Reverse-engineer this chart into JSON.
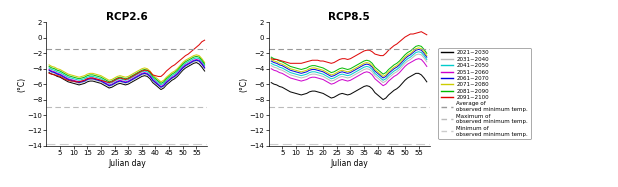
{
  "title_left": "RCP2.6",
  "title_right": "RCP8.5",
  "xlabel": "Julian day",
  "ylabel": "(°C)",
  "xlim": [
    0,
    59
  ],
  "ylim": [
    -14,
    2
  ],
  "yticks": [
    2,
    0,
    -2,
    -4,
    -6,
    -8,
    -10,
    -12,
    -14
  ],
  "xticks": [
    5,
    10,
    15,
    20,
    25,
    30,
    35,
    40,
    45,
    50,
    55
  ],
  "hlines": {
    "avg": -1.5,
    "max": -9.0,
    "min": -13.8
  },
  "series_colors": [
    "#000000",
    "#bbbbbb",
    "#00cccc",
    "#cc00cc",
    "#0000dd",
    "#cccc00",
    "#00bb00",
    "#dd0000"
  ],
  "series_labels": [
    "2021~2030",
    "2031~2040",
    "2041~2050",
    "2051~2060",
    "2061~2070",
    "2071~2080",
    "2081~2090",
    "2091~2100"
  ],
  "legend_hline_labels": [
    "Average of\nobserved minimum temp.",
    "Maximum of\nobserved minimum temp.",
    "Minimum of\nobserved minimum temp."
  ],
  "legend_hline_colors": [
    "#999999",
    "#bbbbbb",
    "#cccccc"
  ],
  "rcp26": {
    "s0": [
      -4.5,
      -4.7,
      -4.8,
      -5.0,
      -5.1,
      -5.3,
      -5.5,
      -5.7,
      -5.8,
      -5.9,
      -6.0,
      -6.1,
      -6.0,
      -5.9,
      -5.7,
      -5.6,
      -5.6,
      -5.7,
      -5.8,
      -5.9,
      -6.1,
      -6.3,
      -6.5,
      -6.4,
      -6.2,
      -6.0,
      -5.9,
      -6.0,
      -6.1,
      -6.0,
      -5.8,
      -5.6,
      -5.4,
      -5.2,
      -5.0,
      -4.9,
      -5.0,
      -5.3,
      -5.8,
      -6.1,
      -6.4,
      -6.7,
      -6.5,
      -6.1,
      -5.8,
      -5.5,
      -5.3,
      -5.0,
      -4.6,
      -4.2,
      -3.9,
      -3.7,
      -3.5,
      -3.3,
      -3.2,
      -3.4,
      -3.8,
      -4.3
    ],
    "s1": [
      -4.3,
      -4.5,
      -4.6,
      -4.8,
      -4.9,
      -5.1,
      -5.3,
      -5.5,
      -5.6,
      -5.7,
      -5.8,
      -5.9,
      -5.8,
      -5.7,
      -5.5,
      -5.4,
      -5.4,
      -5.5,
      -5.6,
      -5.7,
      -5.9,
      -6.1,
      -6.3,
      -6.2,
      -6.0,
      -5.8,
      -5.7,
      -5.8,
      -5.9,
      -5.8,
      -5.6,
      -5.4,
      -5.2,
      -5.0,
      -4.8,
      -4.7,
      -4.8,
      -5.1,
      -5.6,
      -5.9,
      -6.2,
      -6.5,
      -6.3,
      -5.9,
      -5.6,
      -5.3,
      -5.1,
      -4.8,
      -4.4,
      -4.0,
      -3.7,
      -3.5,
      -3.3,
      -3.1,
      -3.0,
      -3.1,
      -3.5,
      -4.0
    ],
    "s2": [
      -3.9,
      -4.1,
      -4.2,
      -4.4,
      -4.5,
      -4.7,
      -4.9,
      -5.1,
      -5.2,
      -5.3,
      -5.4,
      -5.5,
      -5.4,
      -5.3,
      -5.1,
      -5.0,
      -5.0,
      -5.1,
      -5.2,
      -5.3,
      -5.5,
      -5.7,
      -5.9,
      -5.8,
      -5.6,
      -5.4,
      -5.3,
      -5.4,
      -5.5,
      -5.4,
      -5.2,
      -5.0,
      -4.8,
      -4.6,
      -4.4,
      -4.3,
      -4.4,
      -4.7,
      -5.2,
      -5.5,
      -5.8,
      -6.1,
      -5.9,
      -5.5,
      -5.2,
      -4.9,
      -4.7,
      -4.4,
      -4.0,
      -3.6,
      -3.3,
      -3.1,
      -2.9,
      -2.7,
      -2.6,
      -2.7,
      -3.1,
      -3.6
    ],
    "s3": [
      -4.1,
      -4.3,
      -4.4,
      -4.6,
      -4.7,
      -4.9,
      -5.1,
      -5.3,
      -5.4,
      -5.5,
      -5.6,
      -5.7,
      -5.6,
      -5.5,
      -5.3,
      -5.2,
      -5.2,
      -5.3,
      -5.4,
      -5.5,
      -5.7,
      -5.9,
      -6.1,
      -6.0,
      -5.8,
      -5.6,
      -5.5,
      -5.6,
      -5.7,
      -5.6,
      -5.4,
      -5.2,
      -5.0,
      -4.8,
      -4.6,
      -4.5,
      -4.6,
      -4.9,
      -5.4,
      -5.7,
      -6.0,
      -6.3,
      -6.1,
      -5.7,
      -5.4,
      -5.1,
      -4.9,
      -4.6,
      -4.2,
      -3.8,
      -3.5,
      -3.3,
      -3.1,
      -2.9,
      -2.8,
      -2.9,
      -3.3,
      -3.8
    ],
    "s4": [
      -4.2,
      -4.4,
      -4.5,
      -4.7,
      -4.8,
      -5.0,
      -5.2,
      -5.4,
      -5.5,
      -5.6,
      -5.7,
      -5.8,
      -5.7,
      -5.6,
      -5.4,
      -5.3,
      -5.3,
      -5.4,
      -5.5,
      -5.6,
      -5.8,
      -6.0,
      -6.2,
      -6.1,
      -5.9,
      -5.7,
      -5.6,
      -5.7,
      -5.8,
      -5.7,
      -5.5,
      -5.3,
      -5.1,
      -4.9,
      -4.7,
      -4.6,
      -4.7,
      -5.0,
      -5.5,
      -5.8,
      -6.1,
      -6.4,
      -6.2,
      -5.8,
      -5.5,
      -5.2,
      -5.0,
      -4.7,
      -4.3,
      -3.9,
      -3.6,
      -3.4,
      -3.2,
      -3.0,
      -2.9,
      -3.0,
      -3.4,
      -3.9
    ],
    "s5": [
      -3.5,
      -3.7,
      -3.8,
      -4.0,
      -4.1,
      -4.3,
      -4.5,
      -4.7,
      -4.8,
      -4.9,
      -5.0,
      -5.1,
      -5.0,
      -4.9,
      -4.7,
      -4.6,
      -4.6,
      -4.7,
      -4.8,
      -4.9,
      -5.1,
      -5.3,
      -5.5,
      -5.4,
      -5.2,
      -5.0,
      -4.9,
      -5.0,
      -5.1,
      -5.0,
      -4.8,
      -4.6,
      -4.4,
      -4.2,
      -4.0,
      -3.9,
      -4.0,
      -4.3,
      -4.8,
      -5.1,
      -5.4,
      -5.7,
      -5.5,
      -5.1,
      -4.8,
      -4.5,
      -4.3,
      -4.0,
      -3.6,
      -3.2,
      -2.9,
      -2.7,
      -2.5,
      -2.3,
      -2.2,
      -2.3,
      -2.7,
      -3.2
    ],
    "s6": [
      -3.7,
      -3.9,
      -4.0,
      -4.2,
      -4.3,
      -4.5,
      -4.7,
      -4.9,
      -5.0,
      -5.1,
      -5.2,
      -5.3,
      -5.2,
      -5.1,
      -4.9,
      -4.8,
      -4.8,
      -4.9,
      -5.0,
      -5.1,
      -5.3,
      -5.5,
      -5.7,
      -5.6,
      -5.4,
      -5.2,
      -5.1,
      -5.2,
      -5.3,
      -5.2,
      -5.0,
      -4.8,
      -4.6,
      -4.4,
      -4.2,
      -4.1,
      -4.2,
      -4.5,
      -5.0,
      -5.3,
      -5.6,
      -5.9,
      -5.7,
      -5.3,
      -5.0,
      -4.7,
      -4.5,
      -4.2,
      -3.8,
      -3.4,
      -3.1,
      -2.9,
      -2.7,
      -2.5,
      -2.4,
      -2.5,
      -2.9,
      -3.4
    ],
    "s7": [
      -4.6,
      -4.7,
      -4.8,
      -4.9,
      -5.0,
      -5.2,
      -5.4,
      -5.5,
      -5.6,
      -5.6,
      -5.7,
      -5.7,
      -5.6,
      -5.5,
      -5.3,
      -5.2,
      -5.2,
      -5.3,
      -5.4,
      -5.5,
      -5.6,
      -5.7,
      -5.8,
      -5.7,
      -5.5,
      -5.3,
      -5.2,
      -5.3,
      -5.4,
      -5.3,
      -5.1,
      -4.9,
      -4.7,
      -4.5,
      -4.3,
      -4.2,
      -4.2,
      -4.4,
      -4.8,
      -4.9,
      -5.0,
      -5.0,
      -4.7,
      -4.3,
      -4.0,
      -3.7,
      -3.5,
      -3.2,
      -2.9,
      -2.6,
      -2.3,
      -2.1,
      -1.8,
      -1.5,
      -1.2,
      -0.9,
      -0.5,
      -0.3
    ]
  },
  "rcp85": {
    "s0": [
      -5.8,
      -6.0,
      -6.1,
      -6.3,
      -6.4,
      -6.6,
      -6.8,
      -7.0,
      -7.1,
      -7.2,
      -7.3,
      -7.4,
      -7.3,
      -7.2,
      -7.0,
      -6.9,
      -6.9,
      -7.0,
      -7.1,
      -7.2,
      -7.4,
      -7.6,
      -7.8,
      -7.7,
      -7.5,
      -7.3,
      -7.2,
      -7.3,
      -7.4,
      -7.3,
      -7.1,
      -6.9,
      -6.7,
      -6.5,
      -6.3,
      -6.2,
      -6.3,
      -6.6,
      -7.1,
      -7.4,
      -7.7,
      -8.0,
      -7.8,
      -7.4,
      -7.1,
      -6.8,
      -6.6,
      -6.3,
      -5.9,
      -5.5,
      -5.2,
      -5.0,
      -4.8,
      -4.6,
      -4.6,
      -4.8,
      -5.2,
      -5.7
    ],
    "s1": [
      -3.6,
      -3.8,
      -3.9,
      -4.1,
      -4.2,
      -4.4,
      -4.6,
      -4.8,
      -4.9,
      -5.0,
      -5.1,
      -5.2,
      -5.1,
      -5.0,
      -4.8,
      -4.7,
      -4.7,
      -4.8,
      -4.9,
      -5.0,
      -5.2,
      -5.4,
      -5.6,
      -5.5,
      -5.3,
      -5.1,
      -5.0,
      -5.1,
      -5.2,
      -5.1,
      -4.9,
      -4.7,
      -4.5,
      -4.3,
      -4.1,
      -4.0,
      -4.1,
      -4.4,
      -4.9,
      -5.2,
      -5.5,
      -5.8,
      -5.6,
      -5.2,
      -4.9,
      -4.6,
      -4.4,
      -4.1,
      -3.7,
      -3.3,
      -3.0,
      -2.8,
      -2.5,
      -2.2,
      -2.1,
      -2.2,
      -2.6,
      -3.1
    ],
    "s2": [
      -3.3,
      -3.5,
      -3.6,
      -3.8,
      -3.9,
      -4.1,
      -4.3,
      -4.5,
      -4.6,
      -4.7,
      -4.8,
      -4.9,
      -4.8,
      -4.7,
      -4.5,
      -4.4,
      -4.4,
      -4.5,
      -4.6,
      -4.7,
      -4.9,
      -5.1,
      -5.3,
      -5.2,
      -5.0,
      -4.8,
      -4.7,
      -4.8,
      -4.9,
      -4.8,
      -4.6,
      -4.4,
      -4.2,
      -4.0,
      -3.8,
      -3.7,
      -3.8,
      -4.1,
      -4.6,
      -4.9,
      -5.2,
      -5.5,
      -5.3,
      -4.9,
      -4.6,
      -4.3,
      -4.1,
      -3.8,
      -3.4,
      -3.0,
      -2.7,
      -2.5,
      -2.2,
      -1.9,
      -1.8,
      -1.9,
      -2.3,
      -2.8
    ],
    "s3": [
      -4.0,
      -4.2,
      -4.3,
      -4.5,
      -4.6,
      -4.8,
      -5.0,
      -5.2,
      -5.3,
      -5.4,
      -5.5,
      -5.6,
      -5.5,
      -5.4,
      -5.2,
      -5.1,
      -5.1,
      -5.2,
      -5.3,
      -5.4,
      -5.6,
      -5.8,
      -6.0,
      -5.9,
      -5.7,
      -5.5,
      -5.4,
      -5.5,
      -5.6,
      -5.5,
      -5.3,
      -5.1,
      -4.9,
      -4.7,
      -4.5,
      -4.4,
      -4.5,
      -4.8,
      -5.3,
      -5.6,
      -5.9,
      -6.2,
      -6.0,
      -5.6,
      -5.3,
      -5.0,
      -4.8,
      -4.5,
      -4.1,
      -3.7,
      -3.4,
      -3.2,
      -3.0,
      -2.8,
      -2.7,
      -2.8,
      -3.2,
      -3.7
    ],
    "s4": [
      -3.0,
      -3.2,
      -3.3,
      -3.5,
      -3.6,
      -3.8,
      -4.0,
      -4.2,
      -4.3,
      -4.4,
      -4.5,
      -4.6,
      -4.5,
      -4.4,
      -4.2,
      -4.1,
      -4.1,
      -4.2,
      -4.3,
      -4.4,
      -4.6,
      -4.8,
      -5.0,
      -4.9,
      -4.7,
      -4.5,
      -4.4,
      -4.5,
      -4.6,
      -4.5,
      -4.3,
      -4.1,
      -3.9,
      -3.7,
      -3.5,
      -3.4,
      -3.5,
      -3.8,
      -4.3,
      -4.6,
      -4.9,
      -5.2,
      -5.0,
      -4.6,
      -4.3,
      -4.0,
      -3.8,
      -3.5,
      -3.1,
      -2.7,
      -2.4,
      -2.2,
      -1.9,
      -1.6,
      -1.5,
      -1.6,
      -2.0,
      -2.5
    ],
    "s5": [
      -2.8,
      -3.0,
      -3.1,
      -3.3,
      -3.4,
      -3.6,
      -3.8,
      -4.0,
      -4.1,
      -4.2,
      -4.3,
      -4.4,
      -4.3,
      -4.2,
      -4.0,
      -3.9,
      -3.9,
      -4.0,
      -4.1,
      -4.2,
      -4.4,
      -4.6,
      -4.8,
      -4.7,
      -4.5,
      -4.3,
      -4.2,
      -4.3,
      -4.4,
      -4.3,
      -4.1,
      -3.9,
      -3.7,
      -3.5,
      -3.3,
      -3.2,
      -3.3,
      -3.6,
      -4.1,
      -4.4,
      -4.7,
      -5.0,
      -4.8,
      -4.4,
      -4.1,
      -3.8,
      -3.6,
      -3.3,
      -2.9,
      -2.5,
      -2.2,
      -2.0,
      -1.7,
      -1.4,
      -1.3,
      -1.4,
      -1.8,
      -2.3
    ],
    "s6": [
      -2.5,
      -2.7,
      -2.8,
      -3.0,
      -3.1,
      -3.3,
      -3.5,
      -3.7,
      -3.8,
      -3.9,
      -4.0,
      -4.1,
      -4.0,
      -3.9,
      -3.7,
      -3.6,
      -3.6,
      -3.7,
      -3.8,
      -3.9,
      -4.1,
      -4.3,
      -4.5,
      -4.4,
      -4.2,
      -4.0,
      -3.9,
      -4.0,
      -4.1,
      -4.0,
      -3.8,
      -3.6,
      -3.4,
      -3.2,
      -3.0,
      -2.9,
      -3.0,
      -3.3,
      -3.8,
      -4.1,
      -4.4,
      -4.7,
      -4.5,
      -4.1,
      -3.8,
      -3.5,
      -3.3,
      -3.0,
      -2.6,
      -2.2,
      -1.9,
      -1.7,
      -1.4,
      -1.1,
      -1.0,
      -1.1,
      -1.5,
      -2.0
    ],
    "s7": [
      -2.7,
      -2.8,
      -2.8,
      -2.9,
      -3.0,
      -3.1,
      -3.2,
      -3.3,
      -3.3,
      -3.3,
      -3.3,
      -3.3,
      -3.2,
      -3.1,
      -3.0,
      -2.9,
      -2.9,
      -2.9,
      -3.0,
      -3.0,
      -3.1,
      -3.2,
      -3.3,
      -3.2,
      -3.0,
      -2.8,
      -2.7,
      -2.7,
      -2.8,
      -2.7,
      -2.5,
      -2.3,
      -2.1,
      -1.9,
      -1.7,
      -1.6,
      -1.6,
      -1.8,
      -2.1,
      -2.2,
      -2.3,
      -2.3,
      -2.0,
      -1.6,
      -1.3,
      -1.0,
      -0.8,
      -0.5,
      -0.2,
      0.1,
      0.3,
      0.5,
      0.5,
      0.6,
      0.7,
      0.8,
      0.6,
      0.4
    ]
  }
}
